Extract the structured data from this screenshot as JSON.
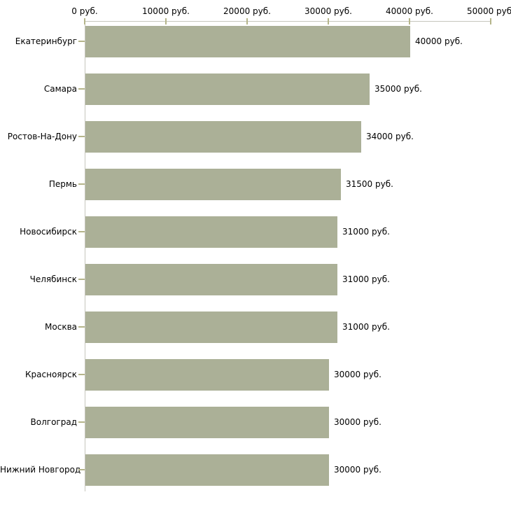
{
  "chart_data": {
    "type": "bar",
    "orientation": "horizontal",
    "title": "",
    "xlabel": "",
    "ylabel": "",
    "grid": false,
    "legend": false,
    "categories": [
      "Екатеринбург",
      "Самара",
      "Ростов-На-Дону",
      "Пермь",
      "Новосибирск",
      "Челябинск",
      "Москва",
      "Красноярск",
      "Волгоград",
      "Нижний Новгород"
    ],
    "values": [
      40000,
      35000,
      34000,
      31500,
      31000,
      31000,
      31000,
      30000,
      30000,
      30000
    ],
    "value_labels": [
      "40000 руб.",
      "35000 руб.",
      "34000 руб.",
      "31500 руб.",
      "31000 руб.",
      "31000 руб.",
      "31000 руб.",
      "30000 руб.",
      "30000 руб.",
      "30000 руб."
    ],
    "x_axis": {
      "position": "top",
      "range": [
        0,
        50000
      ],
      "ticks": [
        0,
        10000,
        20000,
        30000,
        40000,
        50000
      ],
      "tick_labels": [
        "0 руб.",
        "10000 руб.",
        "20000 руб.",
        "30000 руб.",
        "40000 руб.",
        "50000 руб."
      ]
    },
    "colors": {
      "bar_fill": "#abb097",
      "axis_line": "#c6c6bd",
      "tick_mark": "#b5b58a",
      "text": "#000000",
      "background": "#ffffff"
    }
  }
}
